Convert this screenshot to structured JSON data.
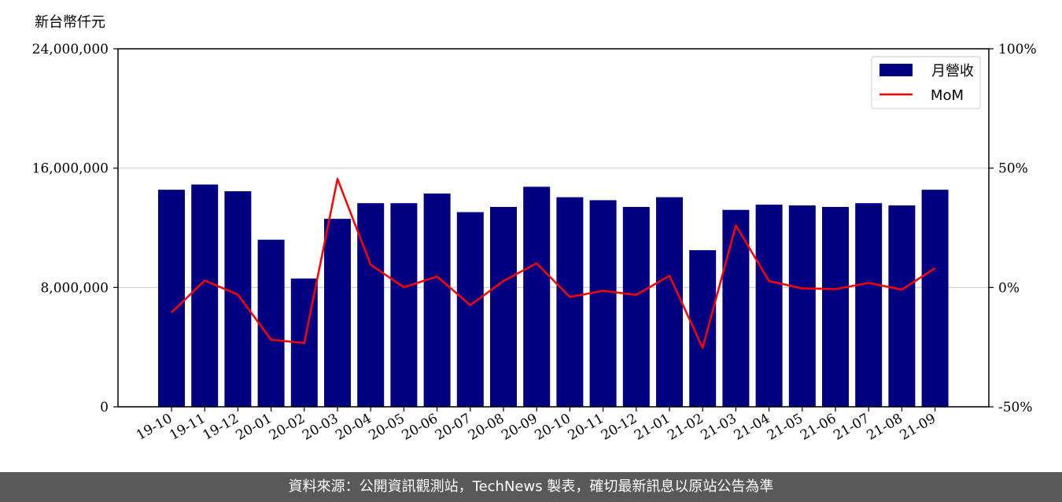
{
  "chart_data": {
    "type": "bar",
    "unit_label": "新台幣仟元",
    "categories": [
      "19-10",
      "19-11",
      "19-12",
      "20-01",
      "20-02",
      "20-03",
      "20-04",
      "20-05",
      "20-06",
      "20-07",
      "20-08",
      "20-09",
      "20-10",
      "20-11",
      "20-12",
      "21-01",
      "21-02",
      "21-03",
      "21-04",
      "21-05",
      "21-06",
      "21-07",
      "21-08",
      "21-09"
    ],
    "series": [
      {
        "name": "月營收",
        "type": "bar",
        "axis": "left",
        "color": "#000080",
        "values": [
          14550000,
          14900000,
          14450000,
          11200000,
          8600000,
          12600000,
          13650000,
          13650000,
          14300000,
          13050000,
          13400000,
          14750000,
          14050000,
          13850000,
          13400000,
          14050000,
          10500000,
          13200000,
          13550000,
          13500000,
          13400000,
          13650000,
          13500000,
          14550000
        ]
      },
      {
        "name": "MoM",
        "type": "line",
        "axis": "right",
        "color": "#ff0000",
        "values": [
          -10.5,
          2.9,
          -3.0,
          -21.9,
          -23.3,
          45.5,
          9.5,
          0.1,
          4.6,
          -7.4,
          2.7,
          10.1,
          -4.0,
          -1.4,
          -3.1,
          4.9,
          -25.3,
          26.0,
          2.7,
          -0.4,
          -0.7,
          1.9,
          -0.9,
          8.1
        ]
      }
    ],
    "yticks_left": [
      "0",
      "8,000,000",
      "16,000,000",
      "24,000,000"
    ],
    "yticks_right": [
      "-50%",
      "0%",
      "50%",
      "100%"
    ],
    "ylim_left": [
      0,
      24000000
    ],
    "ylim_right": [
      -50,
      100
    ],
    "grid": "horizontal",
    "legend_position": "top-right"
  },
  "footer": {
    "text": "資料來源：公開資訊觀測站，TechNews 製表，確切最新訊息以原站公告為準"
  }
}
